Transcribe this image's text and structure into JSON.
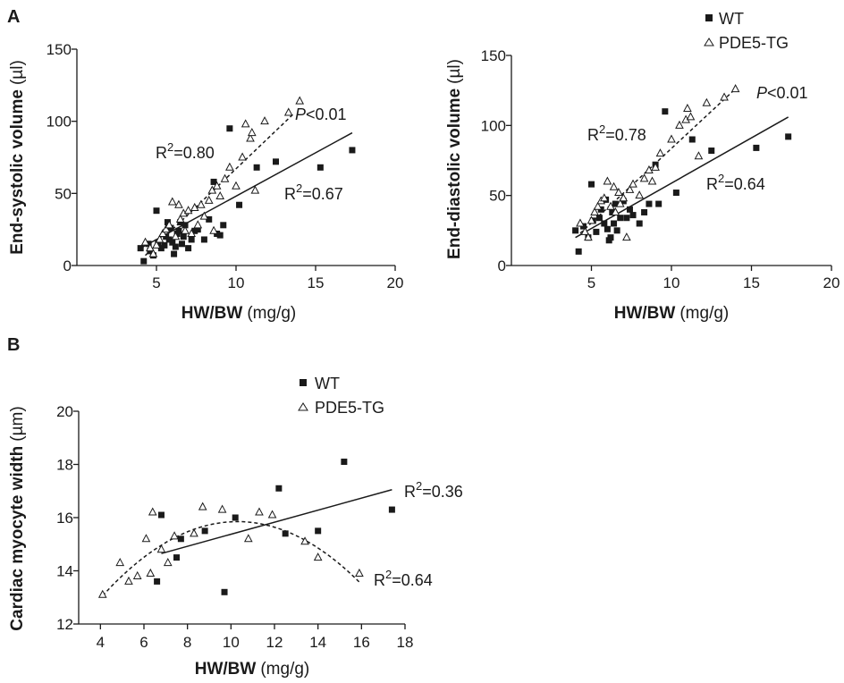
{
  "panels": [
    {
      "label": "A"
    },
    {
      "label": "B"
    }
  ],
  "legend": {
    "wt_label": "WT",
    "tg_label": "PDE5-TG"
  },
  "chart_data": [
    {
      "type": "scatter",
      "id": "esv",
      "xlabel_bold": "HW/BW",
      "xlabel_unit": "(mg/g)",
      "ylabel_bold": "End-systolic volume",
      "ylabel_unit": "(µl)",
      "xlim": [
        0,
        20
      ],
      "ylim": [
        0,
        150
      ],
      "xticks": [
        5,
        10,
        15,
        20
      ],
      "yticks": [
        0,
        50,
        100,
        150
      ],
      "series": [
        {
          "name": "WT",
          "marker": "square",
          "points": [
            [
              4.0,
              12
            ],
            [
              4.2,
              3
            ],
            [
              4.5,
              15
            ],
            [
              4.6,
              10
            ],
            [
              4.8,
              7
            ],
            [
              5.0,
              38
            ],
            [
              5.1,
              16
            ],
            [
              5.3,
              12
            ],
            [
              5.5,
              14
            ],
            [
              5.6,
              20
            ],
            [
              5.7,
              30
            ],
            [
              5.8,
              18
            ],
            [
              5.9,
              26
            ],
            [
              6.0,
              16
            ],
            [
              6.1,
              8
            ],
            [
              6.2,
              13
            ],
            [
              6.3,
              22
            ],
            [
              6.4,
              24
            ],
            [
              6.5,
              30
            ],
            [
              6.6,
              15
            ],
            [
              6.7,
              20
            ],
            [
              6.8,
              28
            ],
            [
              7.0,
              12
            ],
            [
              7.2,
              18
            ],
            [
              7.4,
              24
            ],
            [
              7.6,
              25
            ],
            [
              8.0,
              18
            ],
            [
              8.3,
              32
            ],
            [
              8.6,
              58
            ],
            [
              8.8,
              22
            ],
            [
              9.0,
              21
            ],
            [
              9.2,
              28
            ],
            [
              9.6,
              95
            ],
            [
              10.2,
              42
            ],
            [
              11.3,
              68
            ],
            [
              12.5,
              72
            ],
            [
              15.3,
              68
            ],
            [
              17.3,
              80
            ]
          ]
        },
        {
          "name": "PDE5-TG",
          "marker": "triangle",
          "points": [
            [
              4.3,
              16
            ],
            [
              4.6,
              12
            ],
            [
              4.8,
              8
            ],
            [
              5.0,
              14
            ],
            [
              5.2,
              18
            ],
            [
              5.4,
              22
            ],
            [
              5.6,
              25
            ],
            [
              5.8,
              28
            ],
            [
              6.0,
              44
            ],
            [
              6.2,
              20
            ],
            [
              6.4,
              42
            ],
            [
              6.5,
              32
            ],
            [
              6.7,
              36
            ],
            [
              6.8,
              24
            ],
            [
              7.0,
              38
            ],
            [
              7.2,
              22
            ],
            [
              7.4,
              40
            ],
            [
              7.6,
              28
            ],
            [
              7.8,
              42
            ],
            [
              8.0,
              34
            ],
            [
              8.3,
              45
            ],
            [
              8.5,
              52
            ],
            [
              8.6,
              24
            ],
            [
              8.8,
              55
            ],
            [
              9.0,
              48
            ],
            [
              9.3,
              60
            ],
            [
              9.6,
              68
            ],
            [
              10.0,
              55
            ],
            [
              10.4,
              75
            ],
            [
              10.6,
              98
            ],
            [
              10.9,
              88
            ],
            [
              11.0,
              92
            ],
            [
              11.2,
              52
            ],
            [
              11.8,
              100
            ],
            [
              13.3,
              106
            ],
            [
              14.0,
              114
            ]
          ]
        }
      ],
      "fit_wt": {
        "x": [
          4.0,
          17.3
        ],
        "y": [
          12,
          92
        ]
      },
      "fit_tg": {
        "x": [
          4.3,
          13.6
        ],
        "y": [
          7,
          105
        ]
      },
      "annotations": {
        "p_label_italic": "P",
        "p_label_rest": "<0.01",
        "r2_tg": "=0.80",
        "r2_wt": "=0.67",
        "r2_prefix": "R",
        "r2_sup": "2"
      }
    },
    {
      "type": "scatter",
      "id": "edv",
      "xlabel_bold": "HW/BW",
      "xlabel_unit": "(mg/g)",
      "ylabel_bold": "End-diastolic volume",
      "ylabel_unit": "(µl)",
      "xlim": [
        0,
        20
      ],
      "ylim": [
        0,
        150
      ],
      "xticks": [
        5,
        10,
        15,
        20
      ],
      "yticks": [
        0,
        50,
        100,
        150
      ],
      "series": [
        {
          "name": "WT",
          "marker": "square",
          "points": [
            [
              4.0,
              25
            ],
            [
              4.2,
              10
            ],
            [
              4.5,
              28
            ],
            [
              4.8,
              20
            ],
            [
              5.0,
              58
            ],
            [
              5.1,
              32
            ],
            [
              5.3,
              24
            ],
            [
              5.5,
              34
            ],
            [
              5.6,
              40
            ],
            [
              5.8,
              30
            ],
            [
              5.9,
              47
            ],
            [
              6.0,
              26
            ],
            [
              6.1,
              18
            ],
            [
              6.2,
              20
            ],
            [
              6.3,
              38
            ],
            [
              6.4,
              30
            ],
            [
              6.5,
              44
            ],
            [
              6.6,
              25
            ],
            [
              6.8,
              34
            ],
            [
              7.0,
              46
            ],
            [
              7.2,
              34
            ],
            [
              7.4,
              40
            ],
            [
              7.6,
              36
            ],
            [
              8.0,
              30
            ],
            [
              8.3,
              38
            ],
            [
              8.6,
              44
            ],
            [
              9.0,
              72
            ],
            [
              9.2,
              44
            ],
            [
              9.6,
              110
            ],
            [
              10.3,
              52
            ],
            [
              11.3,
              90
            ],
            [
              12.5,
              82
            ],
            [
              15.3,
              84
            ],
            [
              17.3,
              92
            ]
          ]
        },
        {
          "name": "PDE5-TG",
          "marker": "triangle",
          "points": [
            [
              4.3,
              30
            ],
            [
              4.6,
              24
            ],
            [
              4.8,
              20
            ],
            [
              5.0,
              32
            ],
            [
              5.2,
              38
            ],
            [
              5.4,
              42
            ],
            [
              5.6,
              46
            ],
            [
              5.8,
              48
            ],
            [
              6.0,
              60
            ],
            [
              6.2,
              42
            ],
            [
              6.4,
              56
            ],
            [
              6.5,
              38
            ],
            [
              6.7,
              52
            ],
            [
              6.8,
              44
            ],
            [
              7.0,
              48
            ],
            [
              7.2,
              20
            ],
            [
              7.4,
              54
            ],
            [
              7.6,
              58
            ],
            [
              8.0,
              50
            ],
            [
              8.3,
              62
            ],
            [
              8.6,
              68
            ],
            [
              8.8,
              60
            ],
            [
              9.0,
              70
            ],
            [
              9.3,
              80
            ],
            [
              10.0,
              90
            ],
            [
              10.5,
              100
            ],
            [
              10.9,
              104
            ],
            [
              11.0,
              112
            ],
            [
              11.2,
              106
            ],
            [
              11.7,
              78
            ],
            [
              12.2,
              116
            ],
            [
              13.3,
              120
            ],
            [
              14.0,
              126
            ]
          ]
        }
      ],
      "fit_wt": {
        "x": [
          4.0,
          17.3
        ],
        "y": [
          20,
          106
        ]
      },
      "fit_tg": {
        "x": [
          4.3,
          13.8
        ],
        "y": [
          23,
          124
        ]
      },
      "annotations": {
        "p_label_italic": "P",
        "p_label_rest": "<0.01",
        "r2_tg": "=0.78",
        "r2_wt": "=0.64",
        "r2_prefix": "R",
        "r2_sup": "2"
      }
    },
    {
      "type": "scatter",
      "id": "width",
      "xlabel_bold": "HW/BW",
      "xlabel_unit": "(mg/g)",
      "ylabel_bold": "Cardiac myocyte width",
      "ylabel_unit": "(µm)",
      "xlim": [
        3,
        18
      ],
      "ylim": [
        12,
        20
      ],
      "xticks": [
        4,
        6,
        8,
        10,
        12,
        14,
        16,
        18
      ],
      "yticks": [
        12,
        14,
        16,
        18,
        20
      ],
      "series": [
        {
          "name": "WT",
          "marker": "square",
          "points": [
            [
              6.6,
              13.6
            ],
            [
              6.8,
              16.1
            ],
            [
              7.5,
              14.5
            ],
            [
              7.7,
              15.2
            ],
            [
              8.8,
              15.5
            ],
            [
              9.7,
              13.2
            ],
            [
              10.2,
              16.0
            ],
            [
              12.2,
              17.1
            ],
            [
              12.5,
              15.4
            ],
            [
              14.0,
              15.5
            ],
            [
              15.2,
              18.1
            ],
            [
              17.4,
              16.3
            ]
          ]
        },
        {
          "name": "PDE5-TG",
          "marker": "triangle",
          "points": [
            [
              4.1,
              13.1
            ],
            [
              4.9,
              14.3
            ],
            [
              5.3,
              13.6
            ],
            [
              5.7,
              13.8
            ],
            [
              6.1,
              15.2
            ],
            [
              6.3,
              13.9
            ],
            [
              6.4,
              16.2
            ],
            [
              6.8,
              14.8
            ],
            [
              7.1,
              14.3
            ],
            [
              7.4,
              15.3
            ],
            [
              8.3,
              15.4
            ],
            [
              8.7,
              16.4
            ],
            [
              9.6,
              16.3
            ],
            [
              10.8,
              15.2
            ],
            [
              11.3,
              16.2
            ],
            [
              11.9,
              16.1
            ],
            [
              13.4,
              15.1
            ],
            [
              14.0,
              14.5
            ],
            [
              15.9,
              13.9
            ]
          ]
        }
      ],
      "fit_wt": {
        "x": [
          6.8,
          17.4
        ],
        "y": [
          14.65,
          17.05
        ]
      },
      "fit_tg_quadratic": {
        "x_range": [
          4.1,
          15.9
        ],
        "vertex_x": 10.3,
        "vertex_y": 15.85,
        "a": -0.0725
      },
      "annotations": {
        "r2_wt": "=0.36",
        "r2_tg": "=0.64",
        "r2_prefix": "R",
        "r2_sup": "2"
      }
    }
  ]
}
